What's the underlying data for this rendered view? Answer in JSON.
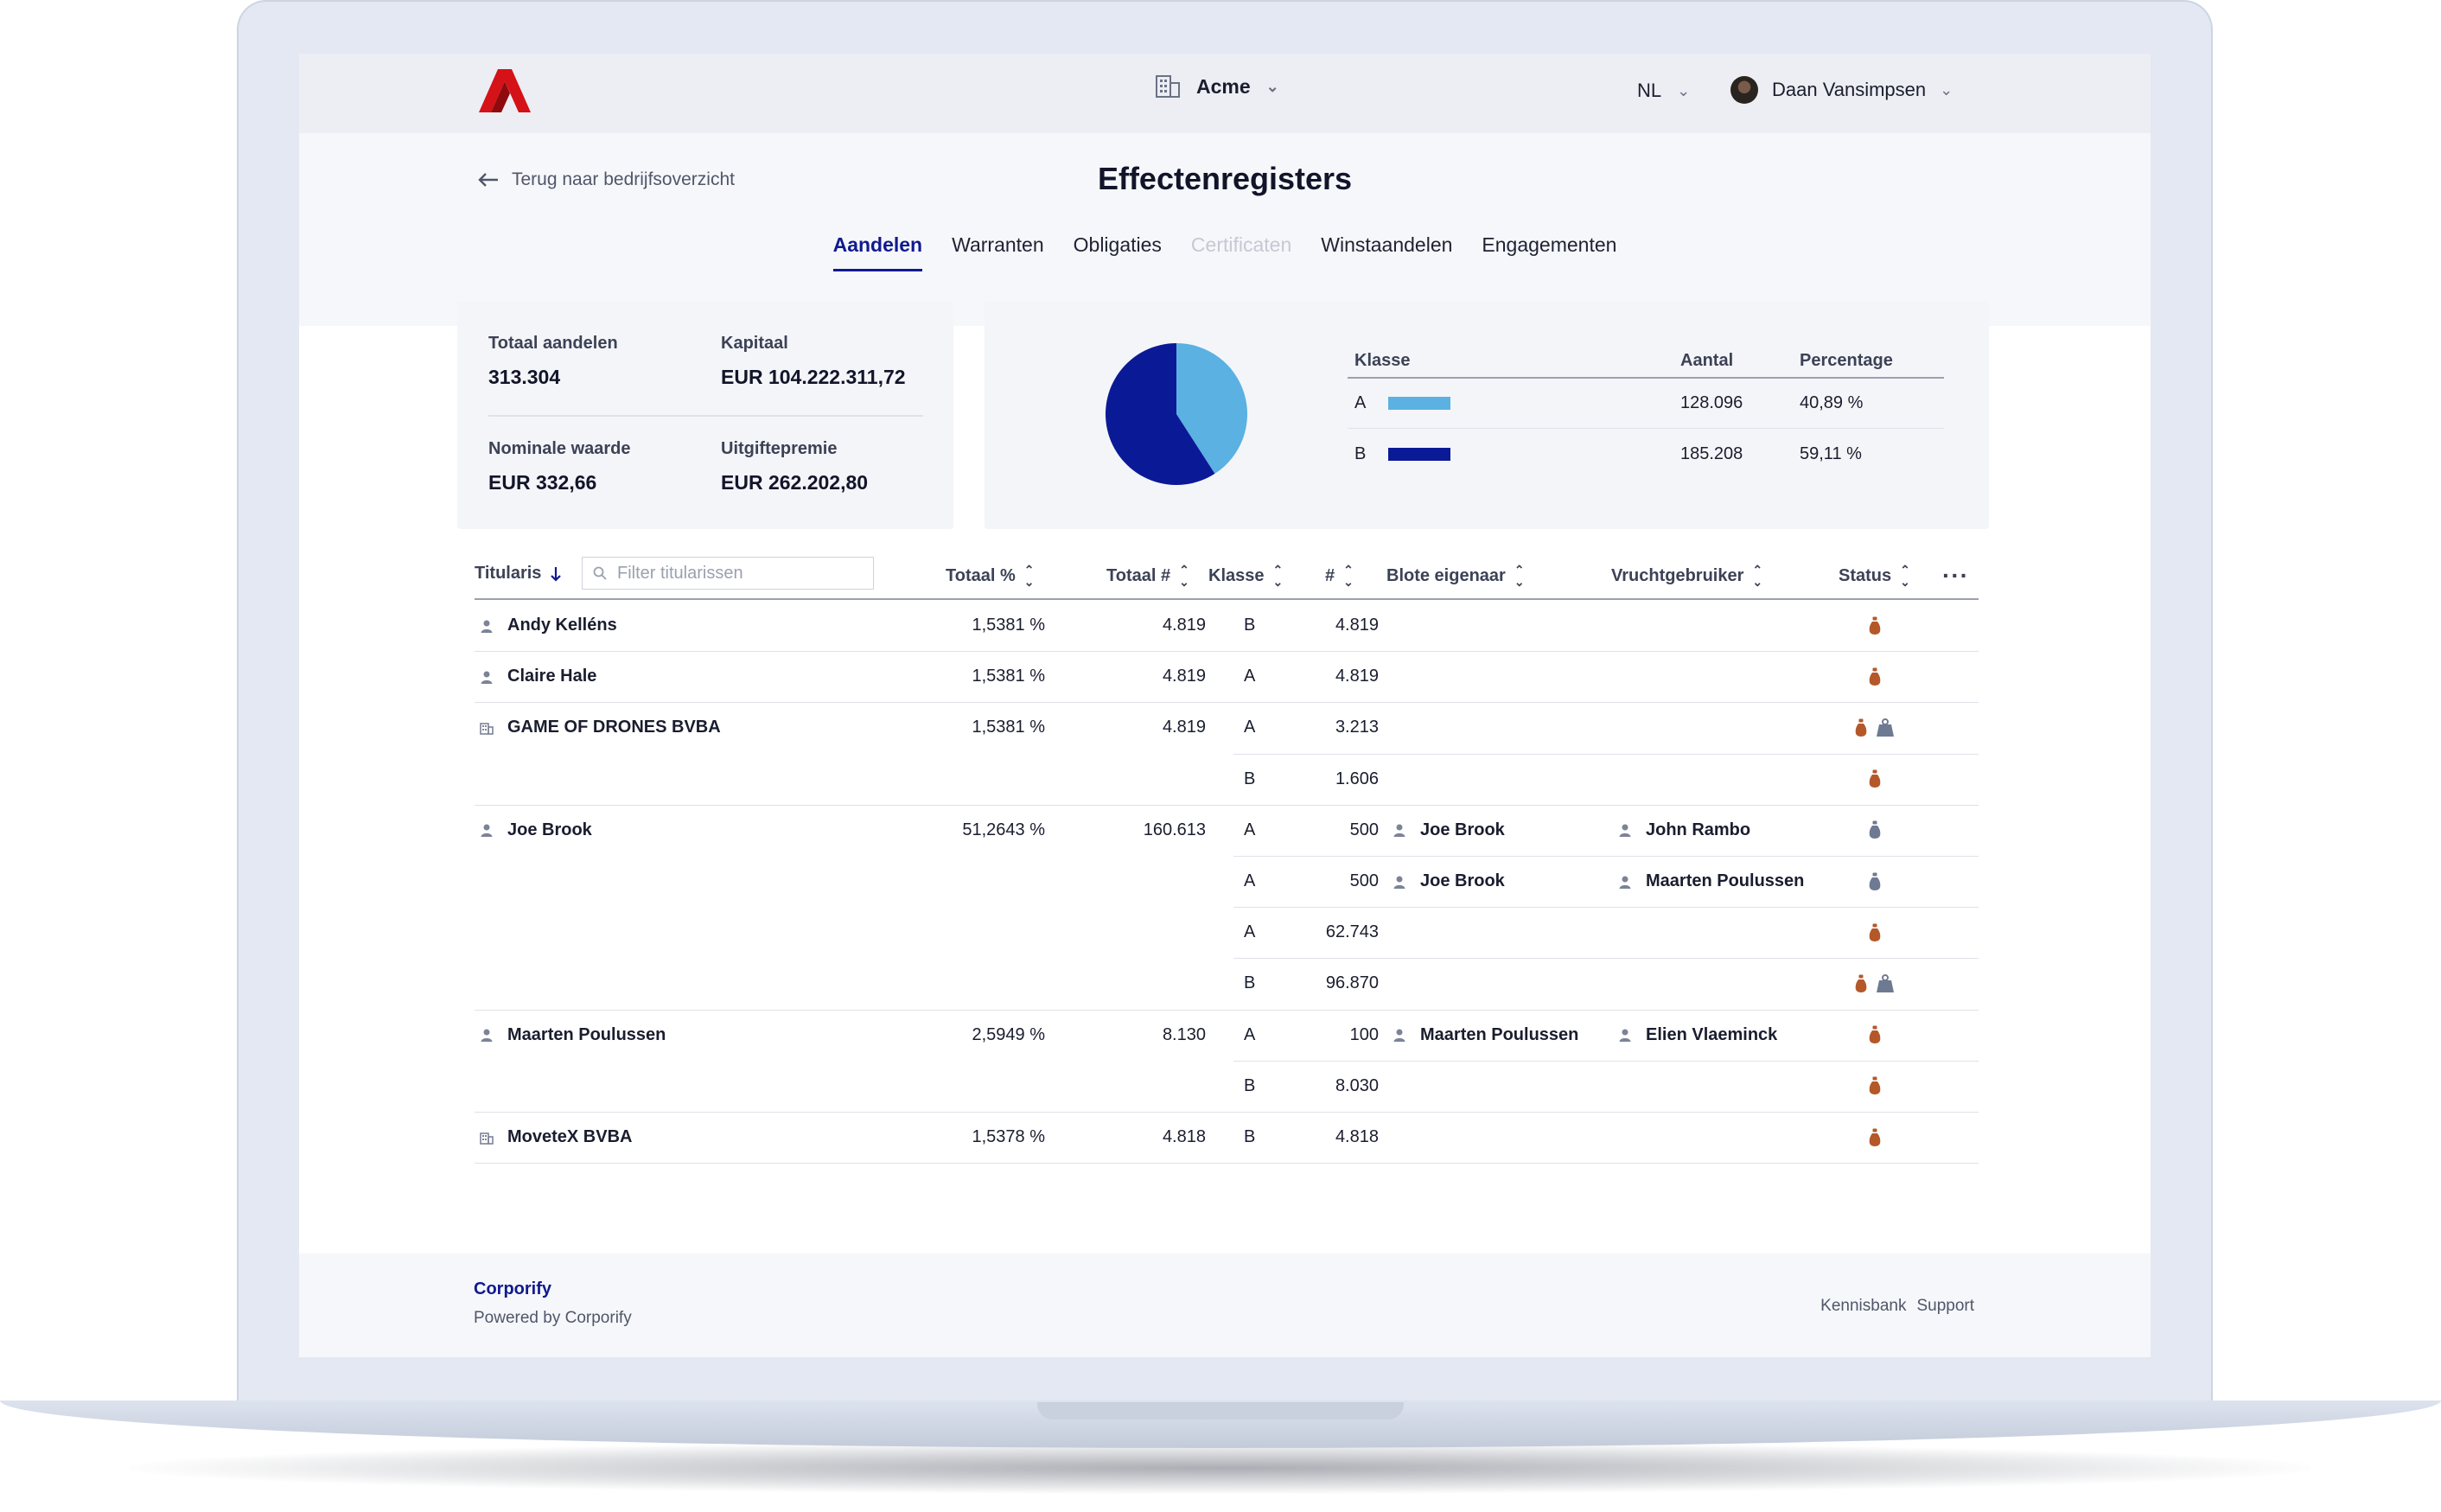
{
  "header": {
    "company": "Acme",
    "language": "NL",
    "user_name": "Daan Vansimpsen"
  },
  "subheader": {
    "back_label": "Terug naar bedrijfsoverzicht",
    "title": "Effectenregisters",
    "tabs": [
      {
        "label": "Aandelen",
        "state": "active"
      },
      {
        "label": "Warranten",
        "state": "normal"
      },
      {
        "label": "Obligaties",
        "state": "normal"
      },
      {
        "label": "Certificaten",
        "state": "disabled"
      },
      {
        "label": "Winstaandelen",
        "state": "normal"
      },
      {
        "label": "Engagementen",
        "state": "normal"
      }
    ]
  },
  "summary": {
    "total_shares_label": "Totaal aandelen",
    "total_shares_value": "313.304",
    "capital_label": "Kapitaal",
    "capital_value": "EUR 104.222.311,72",
    "nominal_label": "Nominale waarde",
    "nominal_value": "EUR 332,66",
    "premium_label": "Uitgiftepremie",
    "premium_value": "EUR 262.202,80"
  },
  "class_breakdown": {
    "headers": {
      "klasse": "Klasse",
      "aantal": "Aantal",
      "percentage": "Percentage"
    },
    "rows": [
      {
        "klasse": "A",
        "aantal": "128.096",
        "percentage": "40,89 %",
        "color": "#5ab1e2"
      },
      {
        "klasse": "B",
        "aantal": "185.208",
        "percentage": "59,11 %",
        "color": "#0a1a96"
      }
    ]
  },
  "chart_data": {
    "type": "pie",
    "categories": [
      "A",
      "B"
    ],
    "values": [
      40.89,
      59.11
    ],
    "colors": [
      "#5ab1e2",
      "#0a1a96"
    ]
  },
  "table": {
    "headers": {
      "holder": "Titularis",
      "total_pct": "Totaal %",
      "total_num": "Totaal #",
      "klasse": "Klasse",
      "num": "#",
      "bare_owner": "Blote eigenaar",
      "usufructuary": "Vruchtgebruiker",
      "status": "Status"
    },
    "filter_placeholder": "Filter titularissen",
    "rows": [
      {
        "holder": "Andy Kelléns",
        "holder_type": "person",
        "total_pct": "1,5381 %",
        "total_num": "4.819",
        "klasse": "B",
        "num": "4.819",
        "bare_owner": "",
        "usufructuary": "",
        "status": [
          "full"
        ]
      },
      {
        "holder": "Claire Hale",
        "holder_type": "person",
        "total_pct": "1,5381 %",
        "total_num": "4.819",
        "klasse": "A",
        "num": "4.819",
        "bare_owner": "",
        "usufructuary": "",
        "status": [
          "full"
        ]
      },
      {
        "holder": "GAME OF DRONES BVBA",
        "holder_type": "company",
        "total_pct": "1,5381 %",
        "total_num": "4.819",
        "klasse": "A",
        "num": "3.213",
        "bare_owner": "",
        "usufructuary": "",
        "status": [
          "full",
          "pledge"
        ]
      },
      {
        "holder": "",
        "holder_type": "",
        "total_pct": "",
        "total_num": "",
        "klasse": "B",
        "num": "1.606",
        "bare_owner": "",
        "usufructuary": "",
        "status": [
          "full"
        ]
      },
      {
        "holder": "Joe Brook",
        "holder_type": "person",
        "total_pct": "51,2643 %",
        "total_num": "160.613",
        "klasse": "A",
        "num": "500",
        "bare_owner": "Joe Brook",
        "usufructuary": "John Rambo",
        "status": [
          "split"
        ]
      },
      {
        "holder": "",
        "holder_type": "",
        "total_pct": "",
        "total_num": "",
        "klasse": "A",
        "num": "500",
        "bare_owner": "Joe Brook",
        "usufructuary": "Maarten Poulussen",
        "status": [
          "split"
        ]
      },
      {
        "holder": "",
        "holder_type": "",
        "total_pct": "",
        "total_num": "",
        "klasse": "A",
        "num": "62.743",
        "bare_owner": "",
        "usufructuary": "",
        "status": [
          "full"
        ]
      },
      {
        "holder": "",
        "holder_type": "",
        "total_pct": "",
        "total_num": "",
        "klasse": "B",
        "num": "96.870",
        "bare_owner": "",
        "usufructuary": "",
        "status": [
          "full",
          "pledge"
        ]
      },
      {
        "holder": "Maarten Poulussen",
        "holder_type": "person",
        "total_pct": "2,5949 %",
        "total_num": "8.130",
        "klasse": "A",
        "num": "100",
        "bare_owner": "Maarten Poulussen",
        "usufructuary": "Elien Vlaeminck",
        "status": [
          "full"
        ]
      },
      {
        "holder": "",
        "holder_type": "",
        "total_pct": "",
        "total_num": "",
        "klasse": "B",
        "num": "8.030",
        "bare_owner": "",
        "usufructuary": "",
        "status": [
          "full"
        ]
      },
      {
        "holder": "MoveteX BVBA",
        "holder_type": "company",
        "total_pct": "1,5378 %",
        "total_num": "4.818",
        "klasse": "B",
        "num": "4.818",
        "bare_owner": "",
        "usufructuary": "",
        "status": [
          "full"
        ]
      }
    ]
  },
  "footer": {
    "brand": "Corporify",
    "powered_by": "Powered by Corporify",
    "links": [
      "Kennisbank",
      "Support"
    ]
  },
  "colors": {
    "accent": "#101a8f",
    "logo": "#d41217",
    "status_full": "#b4582a",
    "status_split": "#6e7a92"
  }
}
